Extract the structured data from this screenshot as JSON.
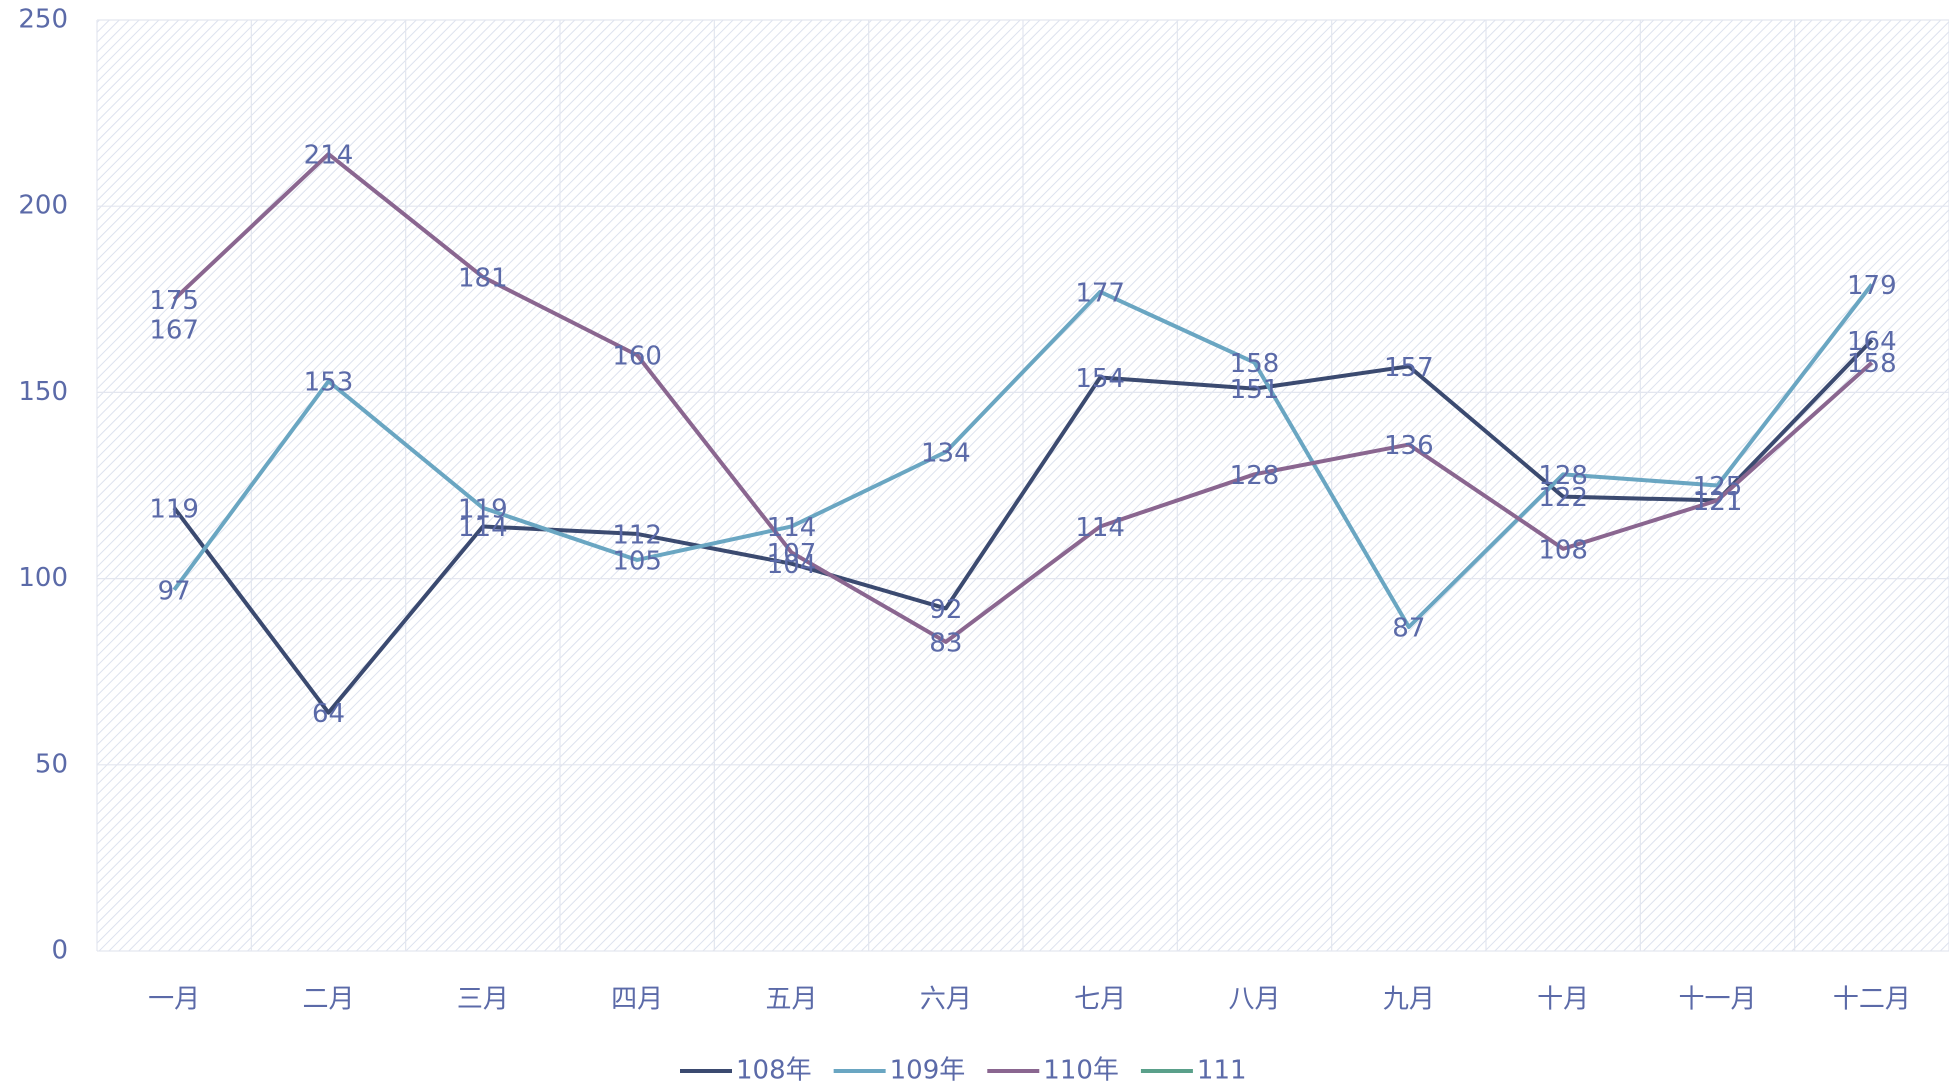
{
  "chart_data": {
    "type": "line",
    "categories": [
      "一月",
      "二月",
      "三月",
      "四月",
      "五月",
      "六月",
      "七月",
      "八月",
      "九月",
      "十月",
      "十一月",
      "十二月"
    ],
    "series": [
      {
        "name": "108年",
        "color": "#3b4a70",
        "values": [
          119,
          64,
          114,
          112,
          104,
          92,
          154,
          151,
          157,
          122,
          121,
          164
        ]
      },
      {
        "name": "109年",
        "color": "#6aa6c2",
        "values": [
          97,
          153,
          119,
          105,
          114,
          134,
          177,
          158,
          87,
          128,
          125,
          179
        ]
      },
      {
        "name": "110年",
        "color": "#8a6690",
        "values": [
          175,
          214,
          181,
          160,
          107,
          83,
          114,
          128,
          136,
          108,
          121,
          158
        ]
      },
      {
        "name": "111",
        "color": "#5aa08a",
        "values": [
          167,
          null,
          null,
          null,
          null,
          null,
          null,
          null,
          null,
          null,
          null,
          null
        ]
      }
    ],
    "ylim": [
      0,
      250
    ],
    "yticks": [
      0,
      50,
      100,
      150,
      200,
      250
    ],
    "grid": true,
    "legend": "bottom"
  }
}
